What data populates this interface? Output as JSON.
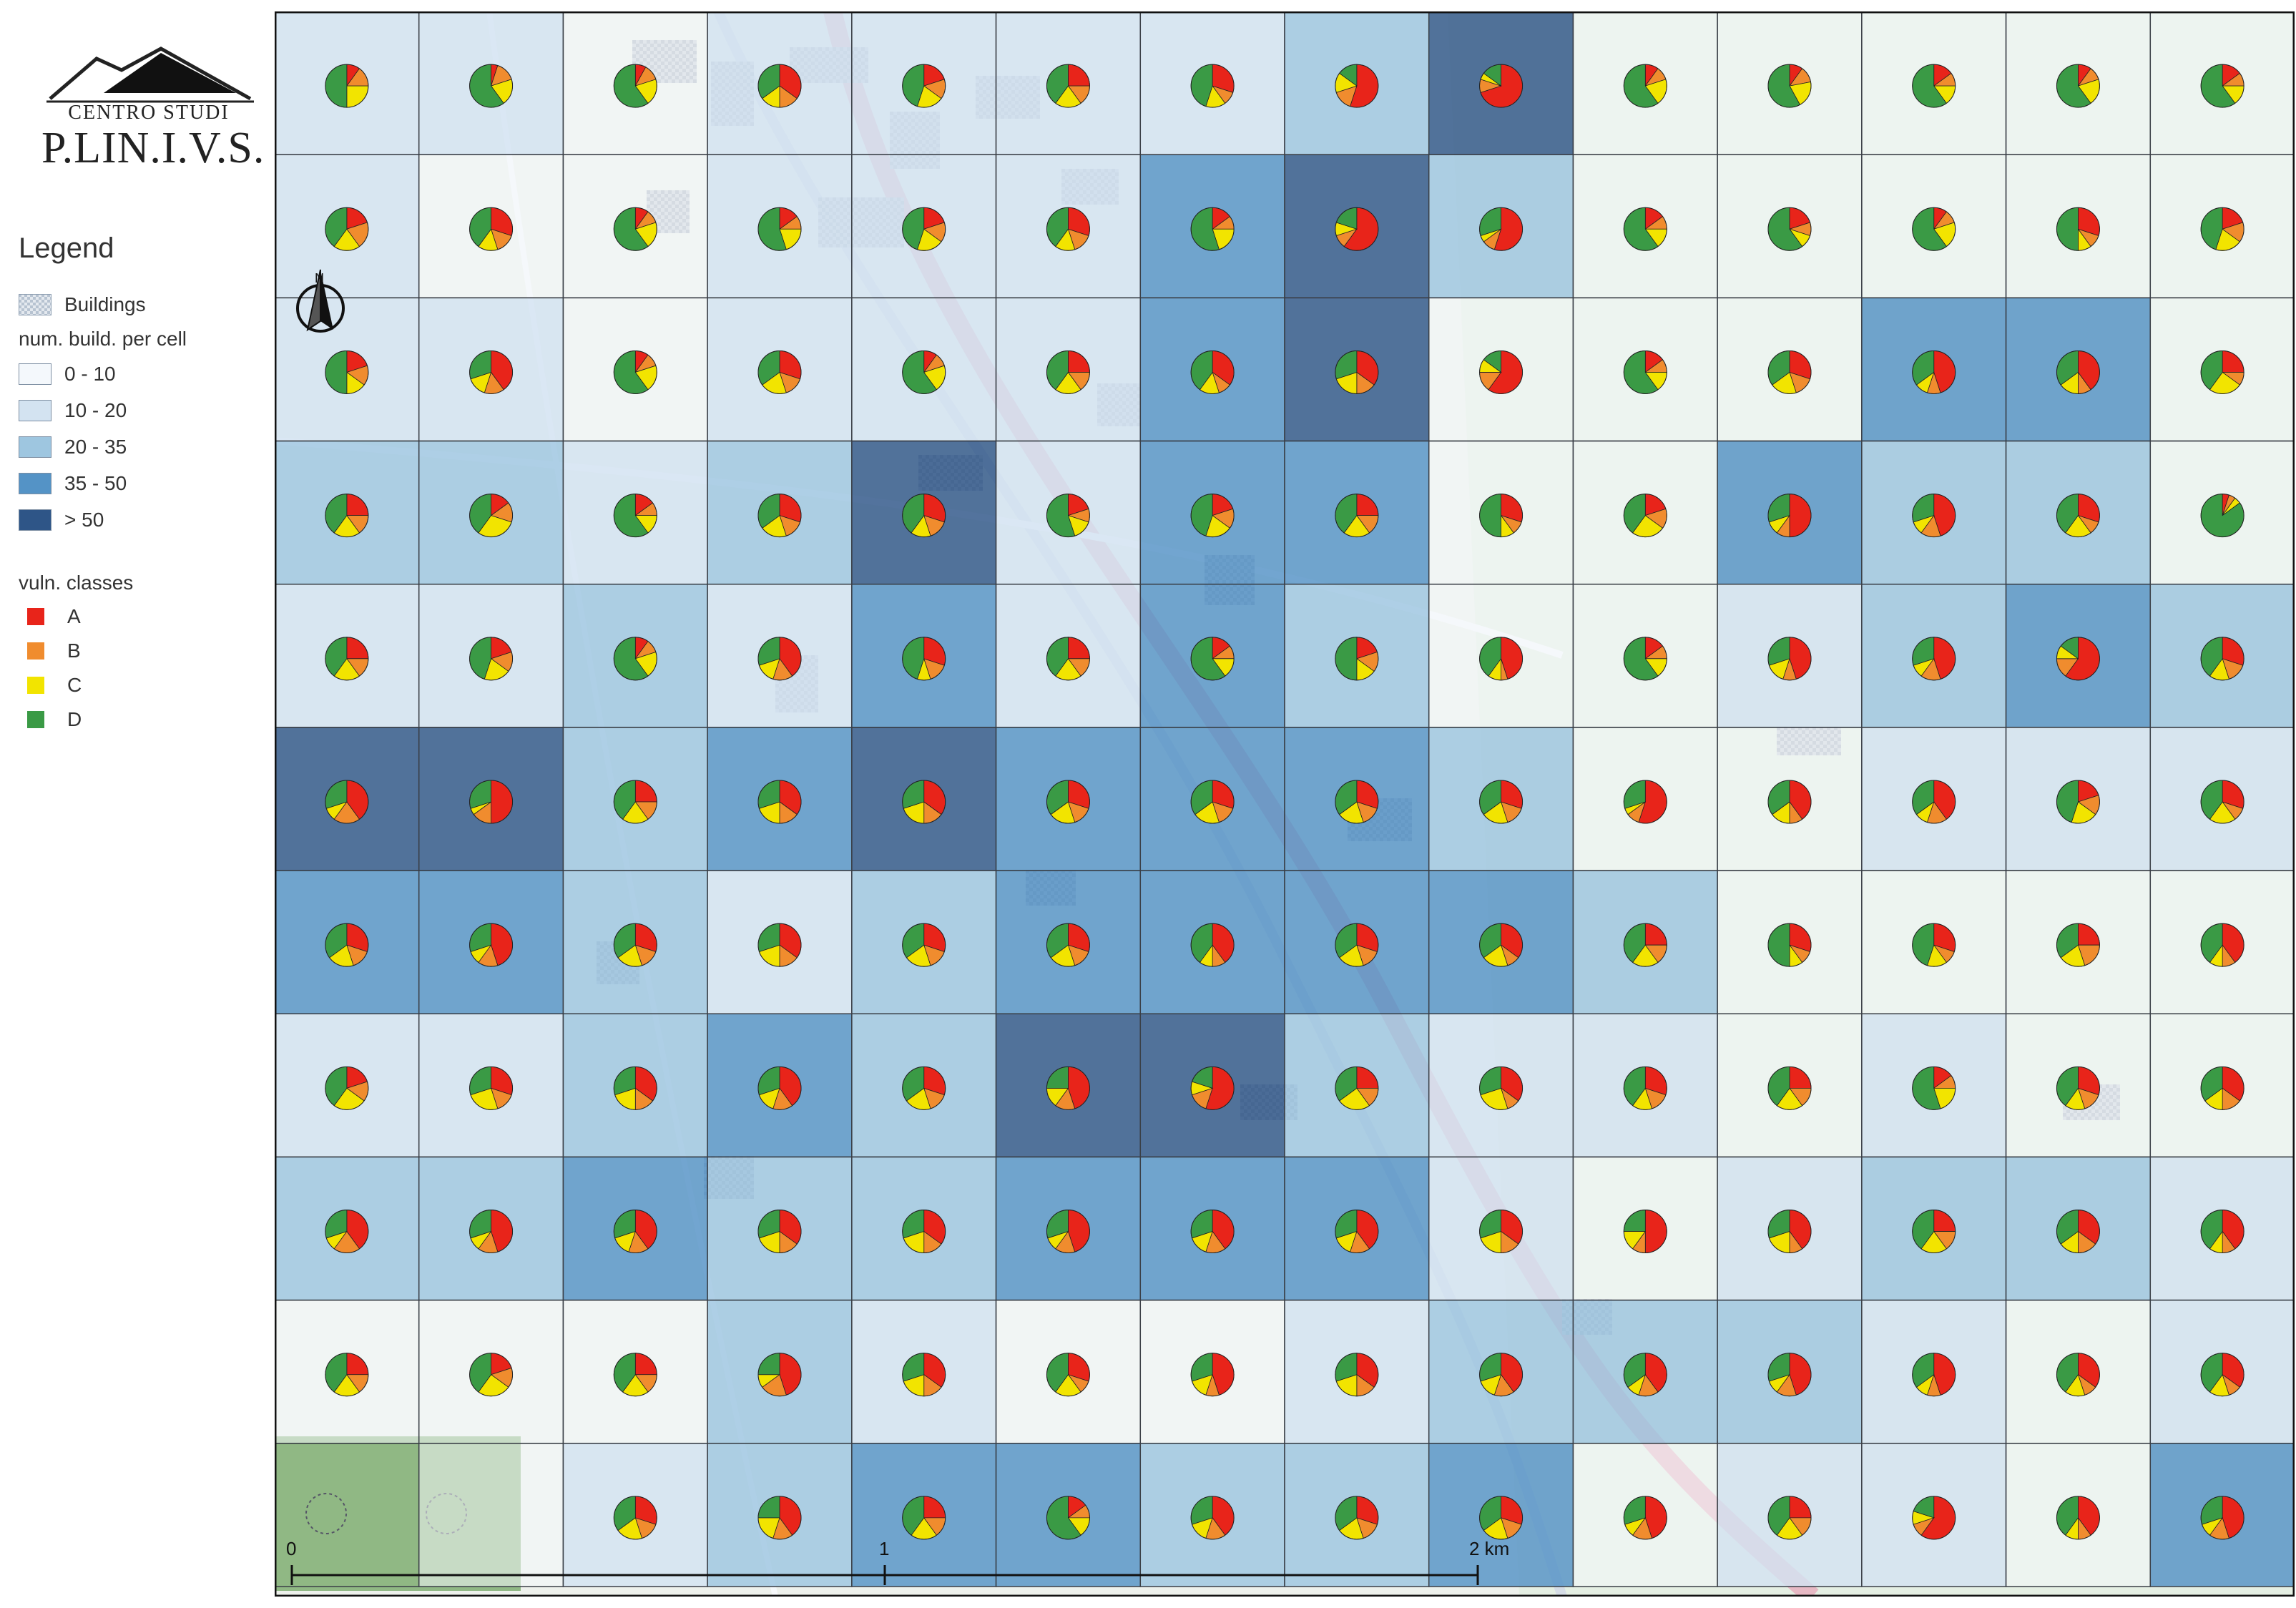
{
  "logo": {
    "title": "CENTRO STUDI",
    "name": "P.LIN.I.V.S."
  },
  "legend": {
    "title": "Legend",
    "buildings": {
      "label": "Buildings",
      "pattern": "checkered-gray"
    },
    "density_title": "num. build. per cell",
    "density_classes": [
      {
        "label": "0 - 10",
        "color": "#f4f8fc"
      },
      {
        "label": "10 - 20",
        "color": "#d3e3f1"
      },
      {
        "label": "20 - 35",
        "color": "#9ec6e0"
      },
      {
        "label": "35 - 50",
        "color": "#5493c6"
      },
      {
        "label": "> 50",
        "color": "#2e5587"
      }
    ],
    "vuln_title": "vuln. classes",
    "vuln_classes": [
      {
        "label": "A",
        "color": "#e8241a"
      },
      {
        "label": "B",
        "color": "#f08c2e"
      },
      {
        "label": "C",
        "color": "#f2e400"
      },
      {
        "label": "D",
        "color": "#3a9a45"
      }
    ]
  },
  "north_arrow": {
    "label": "N"
  },
  "scale_bar": {
    "labels": [
      "0",
      "1",
      "2 km"
    ]
  },
  "grid": {
    "rows": 11,
    "cols": 14,
    "density_class": [
      [
        1,
        1,
        0,
        1,
        1,
        1,
        1,
        2,
        4,
        0,
        0,
        0,
        0,
        0
      ],
      [
        1,
        0,
        0,
        1,
        1,
        1,
        3,
        4,
        2,
        0,
        0,
        0,
        0,
        0
      ],
      [
        1,
        1,
        0,
        1,
        1,
        1,
        3,
        4,
        0,
        0,
        0,
        3,
        3,
        0
      ],
      [
        2,
        2,
        1,
        2,
        4,
        1,
        3,
        3,
        0,
        0,
        3,
        2,
        2,
        0
      ],
      [
        1,
        1,
        2,
        1,
        3,
        1,
        3,
        2,
        0,
        0,
        1,
        2,
        3,
        2
      ],
      [
        4,
        4,
        2,
        3,
        4,
        3,
        3,
        3,
        2,
        0,
        0,
        1,
        1,
        1
      ],
      [
        3,
        3,
        2,
        1,
        2,
        3,
        3,
        3,
        3,
        2,
        0,
        0,
        0,
        0
      ],
      [
        1,
        1,
        2,
        3,
        2,
        4,
        4,
        2,
        1,
        1,
        0,
        1,
        0,
        0
      ],
      [
        2,
        2,
        3,
        2,
        2,
        3,
        3,
        3,
        1,
        0,
        1,
        2,
        2,
        1
      ],
      [
        0,
        0,
        0,
        2,
        1,
        0,
        0,
        1,
        2,
        2,
        2,
        1,
        0,
        1
      ],
      [
        -1,
        0,
        1,
        2,
        3,
        3,
        2,
        2,
        3,
        0,
        1,
        1,
        0,
        3
      ]
    ],
    "vuln_shares": [
      [
        [
          10,
          15,
          25,
          50
        ],
        [
          5,
          15,
          20,
          60
        ],
        [
          8,
          12,
          20,
          60
        ],
        [
          35,
          15,
          15,
          35
        ],
        [
          20,
          15,
          20,
          45
        ],
        [
          25,
          15,
          20,
          40
        ],
        [
          30,
          10,
          15,
          45
        ],
        [
          55,
          15,
          15,
          15
        ],
        [
          70,
          10,
          5,
          15
        ],
        [
          10,
          10,
          20,
          60
        ],
        [
          10,
          12,
          20,
          58
        ],
        [
          15,
          10,
          15,
          60
        ],
        [
          10,
          10,
          20,
          60
        ],
        [
          15,
          10,
          15,
          60
        ]
      ],
      [
        [
          20,
          20,
          20,
          40
        ],
        [
          30,
          15,
          15,
          40
        ],
        [
          10,
          10,
          20,
          60
        ],
        [
          15,
          10,
          20,
          55
        ],
        [
          20,
          15,
          20,
          45
        ],
        [
          30,
          15,
          15,
          40
        ],
        [
          15,
          10,
          20,
          55
        ],
        [
          60,
          10,
          10,
          20
        ],
        [
          55,
          10,
          5,
          30
        ],
        [
          15,
          10,
          15,
          60
        ],
        [
          20,
          10,
          10,
          60
        ],
        [
          10,
          10,
          20,
          60
        ],
        [
          30,
          10,
          10,
          50
        ],
        [
          20,
          15,
          20,
          45
        ]
      ],
      [
        [
          20,
          15,
          15,
          50
        ],
        [
          40,
          15,
          15,
          30
        ],
        [
          10,
          10,
          20,
          60
        ],
        [
          30,
          15,
          20,
          35
        ],
        [
          10,
          10,
          20,
          60
        ],
        [
          25,
          15,
          20,
          40
        ],
        [
          35,
          10,
          15,
          40
        ],
        [
          35,
          15,
          20,
          30
        ],
        [
          60,
          15,
          10,
          15
        ],
        [
          15,
          10,
          15,
          60
        ],
        [
          30,
          15,
          20,
          35
        ],
        [
          45,
          10,
          10,
          35
        ],
        [
          40,
          10,
          15,
          35
        ],
        [
          25,
          10,
          25,
          40
        ]
      ],
      [
        [
          25,
          15,
          20,
          40
        ],
        [
          15,
          15,
          30,
          40
        ],
        [
          15,
          10,
          15,
          60
        ],
        [
          30,
          15,
          20,
          35
        ],
        [
          30,
          15,
          15,
          40
        ],
        [
          20,
          10,
          15,
          55
        ],
        [
          20,
          15,
          20,
          45
        ],
        [
          25,
          15,
          20,
          40
        ],
        [
          30,
          10,
          10,
          50
        ],
        [
          20,
          15,
          25,
          40
        ],
        [
          50,
          10,
          10,
          30
        ],
        [
          45,
          15,
          10,
          30
        ],
        [
          30,
          10,
          20,
          40
        ],
        [
          5,
          5,
          5,
          85
        ]
      ],
      [
        [
          25,
          15,
          20,
          40
        ],
        [
          20,
          15,
          20,
          45
        ],
        [
          10,
          10,
          20,
          60
        ],
        [
          40,
          15,
          15,
          30
        ],
        [
          30,
          15,
          10,
          45
        ],
        [
          25,
          15,
          20,
          40
        ],
        [
          15,
          10,
          15,
          60
        ],
        [
          20,
          15,
          15,
          50
        ],
        [
          45,
          5,
          10,
          40
        ],
        [
          15,
          10,
          15,
          60
        ],
        [
          45,
          10,
          15,
          30
        ],
        [
          45,
          15,
          10,
          30
        ],
        [
          60,
          15,
          10,
          15
        ],
        [
          30,
          15,
          15,
          40
        ]
      ],
      [
        [
          40,
          20,
          10,
          30
        ],
        [
          50,
          15,
          5,
          30
        ],
        [
          25,
          15,
          20,
          40
        ],
        [
          35,
          15,
          20,
          30
        ],
        [
          35,
          15,
          20,
          30
        ],
        [
          30,
          15,
          20,
          35
        ],
        [
          30,
          15,
          20,
          35
        ],
        [
          30,
          15,
          20,
          35
        ],
        [
          30,
          15,
          20,
          35
        ],
        [
          55,
          10,
          5,
          30
        ],
        [
          40,
          10,
          15,
          35
        ],
        [
          40,
          15,
          10,
          35
        ],
        [
          20,
          15,
          20,
          45
        ],
        [
          30,
          10,
          20,
          40
        ]
      ],
      [
        [
          30,
          15,
          20,
          35
        ],
        [
          45,
          15,
          10,
          30
        ],
        [
          30,
          15,
          20,
          35
        ],
        [
          35,
          15,
          20,
          30
        ],
        [
          30,
          15,
          20,
          35
        ],
        [
          30,
          15,
          20,
          35
        ],
        [
          40,
          10,
          10,
          40
        ],
        [
          30,
          15,
          20,
          35
        ],
        [
          35,
          10,
          20,
          35
        ],
        [
          25,
          15,
          20,
          40
        ],
        [
          30,
          10,
          10,
          50
        ],
        [
          30,
          10,
          15,
          45
        ],
        [
          25,
          20,
          20,
          35
        ],
        [
          40,
          10,
          10,
          40
        ]
      ],
      [
        [
          20,
          15,
          25,
          40
        ],
        [
          30,
          15,
          25,
          30
        ],
        [
          35,
          15,
          20,
          30
        ],
        [
          40,
          15,
          15,
          30
        ],
        [
          30,
          15,
          20,
          35
        ],
        [
          45,
          15,
          15,
          25
        ],
        [
          55,
          15,
          10,
          20
        ],
        [
          25,
          15,
          25,
          35
        ],
        [
          35,
          10,
          25,
          30
        ],
        [
          30,
          15,
          15,
          40
        ],
        [
          25,
          15,
          20,
          40
        ],
        [
          15,
          10,
          20,
          55
        ],
        [
          30,
          15,
          15,
          40
        ],
        [
          35,
          15,
          15,
          35
        ]
      ],
      [
        [
          40,
          20,
          10,
          30
        ],
        [
          45,
          15,
          10,
          30
        ],
        [
          40,
          15,
          15,
          30
        ],
        [
          35,
          15,
          20,
          30
        ],
        [
          35,
          15,
          20,
          30
        ],
        [
          45,
          15,
          10,
          30
        ],
        [
          40,
          15,
          15,
          30
        ],
        [
          40,
          15,
          15,
          30
        ],
        [
          35,
          15,
          20,
          30
        ],
        [
          50,
          10,
          15,
          25
        ],
        [
          40,
          10,
          20,
          30
        ],
        [
          25,
          15,
          20,
          40
        ],
        [
          35,
          15,
          15,
          35
        ],
        [
          40,
          10,
          10,
          40
        ]
      ],
      [
        [
          25,
          15,
          20,
          40
        ],
        [
          20,
          15,
          25,
          40
        ],
        [
          25,
          15,
          20,
          40
        ],
        [
          45,
          20,
          10,
          25
        ],
        [
          35,
          15,
          20,
          30
        ],
        [
          30,
          10,
          20,
          40
        ],
        [
          45,
          10,
          15,
          30
        ],
        [
          35,
          15,
          20,
          30
        ],
        [
          40,
          15,
          15,
          30
        ],
        [
          40,
          15,
          10,
          35
        ],
        [
          45,
          15,
          10,
          30
        ],
        [
          45,
          10,
          10,
          35
        ],
        [
          35,
          10,
          15,
          40
        ],
        [
          35,
          10,
          15,
          40
        ]
      ],
      [
        [
          0,
          0,
          0,
          0
        ],
        [
          0,
          0,
          0,
          0
        ],
        [
          30,
          15,
          20,
          35
        ],
        [
          40,
          15,
          20,
          25
        ],
        [
          25,
          15,
          20,
          40
        ],
        [
          15,
          10,
          15,
          60
        ],
        [
          40,
          15,
          15,
          30
        ],
        [
          30,
          15,
          20,
          35
        ],
        [
          30,
          15,
          20,
          35
        ],
        [
          45,
          15,
          10,
          30
        ],
        [
          25,
          15,
          20,
          40
        ],
        [
          60,
          10,
          10,
          20
        ],
        [
          40,
          10,
          10,
          40
        ],
        [
          45,
          15,
          10,
          30
        ]
      ]
    ],
    "unclassed_cells": [
      [
        10,
        0
      ],
      [
        10,
        1
      ]
    ]
  }
}
